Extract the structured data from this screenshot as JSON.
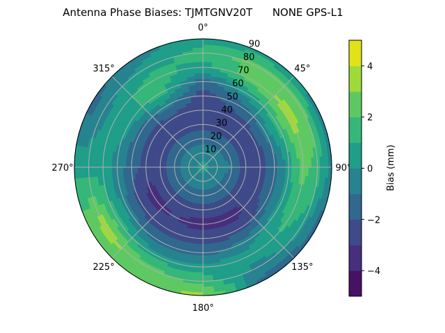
{
  "chart_data": {
    "type": "contour",
    "projection": "polar",
    "title": "Antenna Phase Biases: TJMTGNV20T      NONE GPS-L1",
    "theta_direction": "clockwise",
    "theta_zero": "north",
    "theta_tick_labels": [
      "0°",
      "45°",
      "90°",
      "135°",
      "180°",
      "225°",
      "270°",
      "315°"
    ],
    "theta_ticks": [
      0,
      45,
      90,
      135,
      180,
      225,
      270,
      315
    ],
    "radial_tick_labels": [
      "10",
      "20",
      "30",
      "40",
      "50",
      "60",
      "70",
      "80",
      "90"
    ],
    "radial_ticks": [
      10,
      20,
      30,
      40,
      50,
      60,
      70,
      80,
      90
    ],
    "rlim": [
      0,
      90
    ],
    "grid": true,
    "azimuth": [
      0,
      30,
      60,
      90,
      120,
      150,
      180,
      210,
      240,
      270,
      300,
      330
    ],
    "zenith": [
      0,
      10,
      20,
      30,
      40,
      50,
      60,
      70,
      80,
      90
    ],
    "values": [
      [
        0.3,
        -0.5,
        -1.5,
        -2.5,
        -2.5,
        -2.5,
        -1.5,
        0.5,
        1.5,
        0.5
      ],
      [
        0.3,
        -0.5,
        -1.5,
        -2.5,
        -2.5,
        -1.5,
        0.5,
        2.5,
        2.5,
        0.5
      ],
      [
        0.3,
        -0.5,
        -1.5,
        -2.5,
        -2.5,
        -0.5,
        1.5,
        3.5,
        2.5,
        -0.5
      ],
      [
        0.3,
        -0.5,
        -1.0,
        -2.5,
        -2.5,
        -1.5,
        0.5,
        2.5,
        1.5,
        -0.5
      ],
      [
        0.3,
        -0.5,
        -1.5,
        -2.5,
        -2.5,
        -1.5,
        0.5,
        1.5,
        0.5,
        -1.5
      ],
      [
        0.3,
        -0.5,
        -1.5,
        -2.5,
        -3.5,
        -2.5,
        -0.5,
        0.5,
        -0.5,
        -1.5
      ],
      [
        0.3,
        -0.5,
        -1.5,
        -2.5,
        -3.5,
        -2.5,
        -1.5,
        0.5,
        1.5,
        3.5
      ],
      [
        0.3,
        -0.5,
        -1.5,
        -2.5,
        -3.0,
        -2.5,
        -1.5,
        0.5,
        2.5,
        2.5
      ],
      [
        0.3,
        -0.5,
        -1.5,
        -2.5,
        -3.5,
        -2.5,
        -0.5,
        1.5,
        3.5,
        2.5
      ],
      [
        0.3,
        -0.5,
        -1.5,
        -2.5,
        -2.5,
        -1.5,
        -0.5,
        0.5,
        0.5,
        0.5
      ],
      [
        0.3,
        -0.5,
        -1.5,
        -2.5,
        -2.5,
        -1.5,
        0.5,
        0.5,
        -0.5,
        -1.5
      ],
      [
        0.3,
        -0.5,
        -1.5,
        -2.5,
        -2.5,
        -0.5,
        1.5,
        1.5,
        0.5,
        -0.5
      ]
    ],
    "levels": [
      -5,
      -4,
      -3,
      -2,
      -1,
      0,
      1,
      2,
      3,
      4,
      5
    ],
    "level_colors": [
      "#471164",
      "#472f7d",
      "#3e4a89",
      "#30688e",
      "#26838f",
      "#1f9e89",
      "#35b779",
      "#5ec962",
      "#9fda3a",
      "#dfe318"
    ],
    "colormap": "viridis",
    "colorbar": {
      "label": "Bias (mm)",
      "ticks": [
        -4,
        -2,
        0,
        2,
        4
      ],
      "tick_labels": [
        "−4",
        "−2",
        "0",
        "2",
        "4"
      ],
      "range": [
        -5,
        5
      ]
    }
  }
}
